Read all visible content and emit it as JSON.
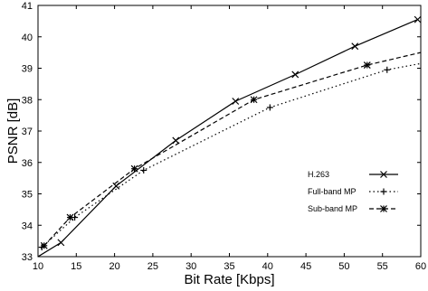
{
  "chart_data": {
    "type": "line",
    "title": "",
    "xlabel": "Bit Rate [Kbps]",
    "ylabel": "PSNR [dB]",
    "xlim": [
      10,
      60
    ],
    "ylim": [
      33,
      41
    ],
    "xticks": [
      "10",
      "15",
      "20",
      "25",
      "30",
      "35",
      "40",
      "45",
      "50",
      "55",
      "60"
    ],
    "yticks": [
      "33",
      "34",
      "35",
      "36",
      "37",
      "38",
      "39",
      "40",
      "41"
    ],
    "grid": false,
    "legend_position": "bottom-right",
    "series": [
      {
        "name": "H.263",
        "line_style": "solid",
        "marker": "x",
        "color": "#000000",
        "x": [
          10,
          13.0,
          20.2,
          28.0,
          35.8,
          43.6,
          51.4,
          59.6
        ],
        "y": [
          33.0,
          33.45,
          35.25,
          36.7,
          37.95,
          38.8,
          39.7,
          40.55
        ]
      },
      {
        "name": "Full-band MP",
        "line_style": "dotted",
        "marker": "+",
        "color": "#000000",
        "x": [
          10.5,
          14.8,
          23.8,
          40.3,
          55.6,
          60
        ],
        "y": [
          33.3,
          34.25,
          35.75,
          37.75,
          38.95,
          39.15
        ]
      },
      {
        "name": "Sub-band MP",
        "line_style": "dashed",
        "marker": "asterisk",
        "color": "#000000",
        "x": [
          10.8,
          14.2,
          22.6,
          38.2,
          53.0,
          60
        ],
        "y": [
          33.35,
          34.25,
          35.8,
          38.0,
          39.1,
          39.5
        ]
      }
    ]
  }
}
